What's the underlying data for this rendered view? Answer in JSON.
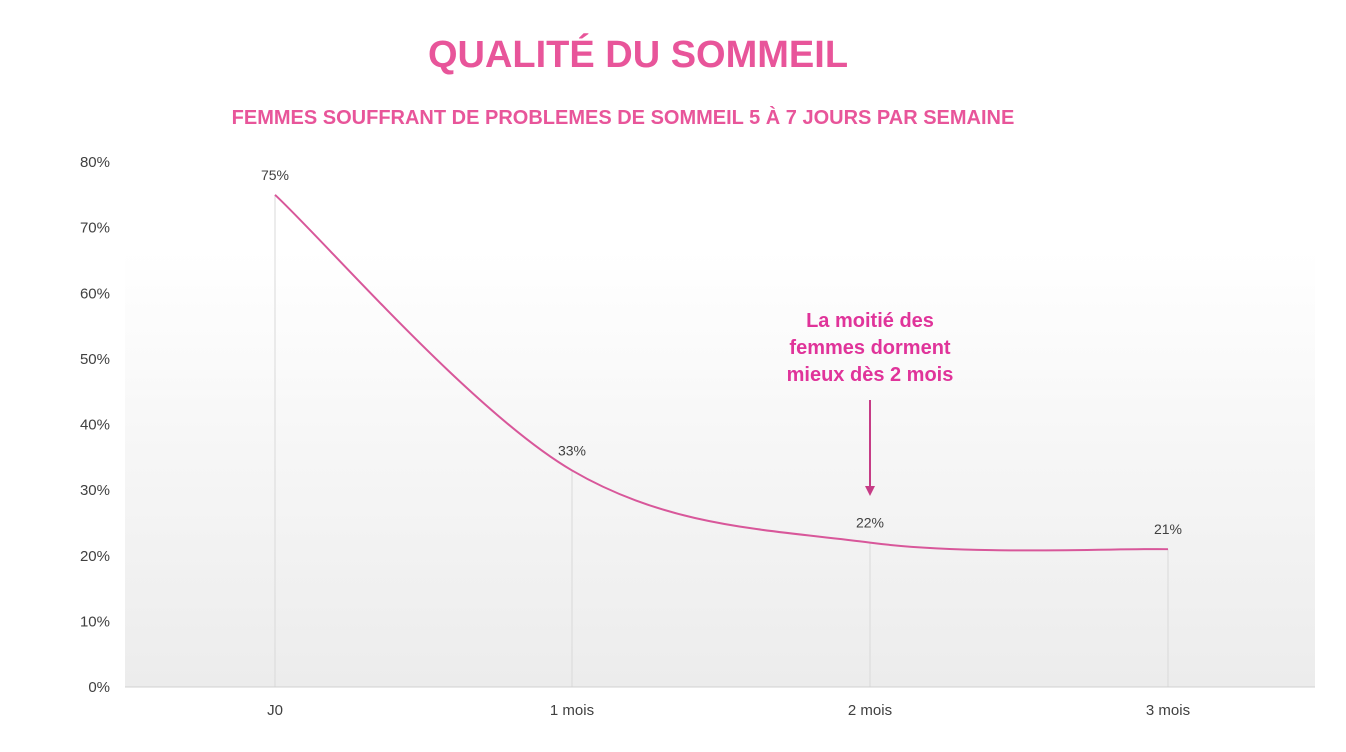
{
  "title": "QUALITÉ DU SOMMEIL",
  "subtitle": "FEMMES SOUFFRANT DE PROBLEMES DE SOMMEIL 5 À 7 JOURS PAR SEMAINE",
  "accent_color": "#e8559a",
  "line_color": "#d8579a",
  "annotation_color": "#e0349a",
  "chart_data": {
    "type": "line",
    "title": "QUALITÉ DU SOMMEIL",
    "subtitle": "FEMMES SOUFFRANT DE PROBLEMES DE SOMMEIL 5 À 7 JOURS PAR SEMAINE",
    "xlabel": "",
    "ylabel": "",
    "categories": [
      "J0",
      "1 mois",
      "2 mois",
      "3 mois"
    ],
    "values": [
      75,
      33,
      22,
      21
    ],
    "data_labels": [
      "75%",
      "33%",
      "22%",
      "21%"
    ],
    "ylim": [
      0,
      80
    ],
    "yticks": [
      {
        "value": 0,
        "label": "0%"
      },
      {
        "value": 10,
        "label": "10%"
      },
      {
        "value": 20,
        "label": "20%"
      },
      {
        "value": 30,
        "label": "30%"
      },
      {
        "value": 40,
        "label": "40%"
      },
      {
        "value": 50,
        "label": "50%"
      },
      {
        "value": 60,
        "label": "60%"
      },
      {
        "value": 70,
        "label": "70%"
      },
      {
        "value": 80,
        "label": "80%"
      }
    ],
    "smooth": true,
    "drop_lines": true,
    "grid": false,
    "legend": "none",
    "annotation": {
      "lines": [
        "La moitié des",
        "femmes dorment",
        "mieux dès 2 mois"
      ],
      "points_to": "2 mois"
    }
  }
}
